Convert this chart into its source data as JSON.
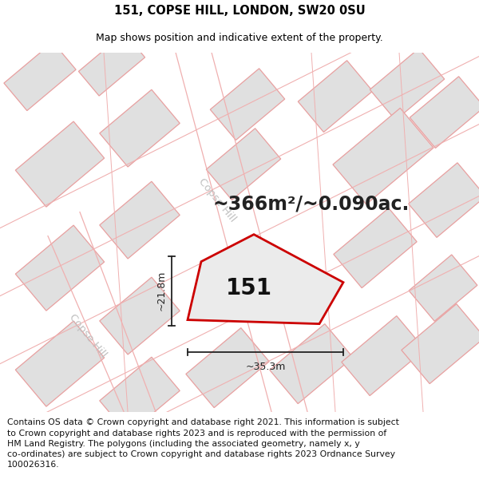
{
  "title": "151, COPSE HILL, LONDON, SW20 0SU",
  "subtitle": "Map shows position and indicative extent of the property.",
  "area_text": "~366m²/~0.090ac.",
  "property_label": "151",
  "dim_width": "~35.3m",
  "dim_height": "~21.8m",
  "footer": "Contains OS data © Crown copyright and database right 2021. This information is subject to Crown copyright and database rights 2023 and is reproduced with the permission of HM Land Registry. The polygons (including the associated geometry, namely x, y co-ordinates) are subject to Crown copyright and database rights 2023 Ordnance Survey 100026316.",
  "bg_color": "#ffffff",
  "building_fill": "#e0e0e0",
  "building_edge": "#e8a0a0",
  "property_edge": "#cc0000",
  "property_fill": "#ebebeb",
  "dim_color": "#222222",
  "road_label_color": "#c0c0c0",
  "title_fontsize": 10.5,
  "subtitle_fontsize": 9,
  "area_fontsize": 17,
  "label_fontsize": 20,
  "footer_fontsize": 7.8
}
